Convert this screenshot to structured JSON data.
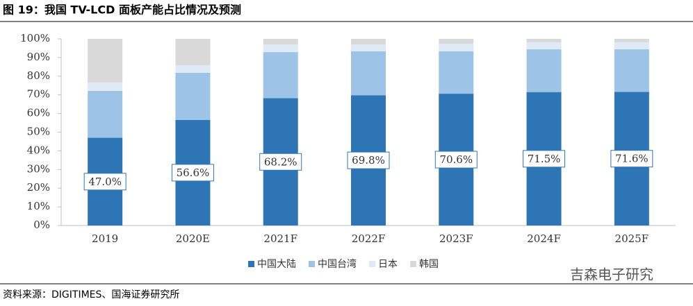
{
  "chart_data": {
    "type": "stacked_bar_percent",
    "title": "图 19：我国 TV-LCD 面板产能占比情况及预测",
    "categories": [
      "2019",
      "2020E",
      "2021F",
      "2022F",
      "2023F",
      "2024F",
      "2025F"
    ],
    "series": [
      {
        "name": "中国大陆",
        "color": "#2e75b6",
        "values": [
          47.0,
          56.6,
          68.2,
          69.8,
          70.6,
          71.5,
          71.6
        ],
        "value_labels": [
          "47.0%",
          "56.6%",
          "68.2%",
          "69.8%",
          "70.6%",
          "71.5%",
          "71.6%"
        ]
      },
      {
        "name": "中国台湾",
        "color": "#9dc3e6",
        "values": [
          25.1,
          25.2,
          24.7,
          23.5,
          22.7,
          22.9,
          22.8
        ]
      },
      {
        "name": "日本",
        "color": "#deebf7",
        "values": [
          4.5,
          4.1,
          4.1,
          3.7,
          4.1,
          3.7,
          3.7
        ]
      },
      {
        "name": "韩国",
        "color": "#d9d9d9",
        "values": [
          23.4,
          14.1,
          3.0,
          3.0,
          2.6,
          1.9,
          1.9
        ]
      }
    ],
    "ylim": [
      0,
      100
    ],
    "yticks": [
      {
        "value": 0,
        "label": "0%"
      },
      {
        "value": 10,
        "label": "10%"
      },
      {
        "value": 20,
        "label": "20%"
      },
      {
        "value": 30,
        "label": "30%"
      },
      {
        "value": 40,
        "label": "40%"
      },
      {
        "value": 50,
        "label": "50%"
      },
      {
        "value": 60,
        "label": "60%"
      },
      {
        "value": 70,
        "label": "70%"
      },
      {
        "value": 80,
        "label": "80%"
      },
      {
        "value": 90,
        "label": "90%"
      },
      {
        "value": 100,
        "label": "100%"
      }
    ],
    "legend": "bottom"
  },
  "source": "资料来源：DIGITIMES、国海证券研究所",
  "watermark": "吉森电子研究"
}
